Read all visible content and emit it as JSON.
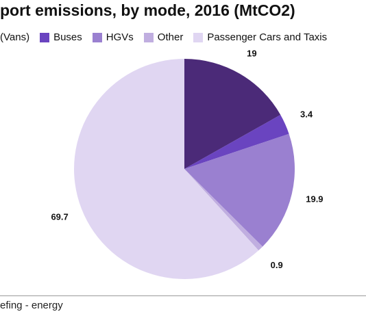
{
  "chart_data": {
    "type": "pie",
    "title": "port emissions, by mode, 2016 (MtCO2)",
    "slices": [
      {
        "name": "(Vans)",
        "value": 19,
        "label": "19",
        "color": "#4b2a78"
      },
      {
        "name": "Buses",
        "value": 3.4,
        "label": "3.4",
        "color": "#6a44c0"
      },
      {
        "name": "HGVs",
        "value": 19.9,
        "label": "19.9",
        "color": "#9a80d0"
      },
      {
        "name": "Other",
        "value": 0.9,
        "label": "0.9",
        "color": "#c0aee0"
      },
      {
        "name": "Passenger Cars and Taxis",
        "value": 69.7,
        "label": "69.7",
        "color": "#e0d6f2"
      }
    ],
    "legend": {
      "placement": "top",
      "items": [
        {
          "label": "(Vans)",
          "color": null
        },
        {
          "label": "Buses",
          "color": "#6a44c0"
        },
        {
          "label": "HGVs",
          "color": "#9a80d0"
        },
        {
          "label": "Other",
          "color": "#c0aee0"
        },
        {
          "label": "Passenger Cars and Taxis",
          "color": "#e0d6f2"
        }
      ]
    }
  },
  "footer": {
    "source": "efing - energy"
  }
}
